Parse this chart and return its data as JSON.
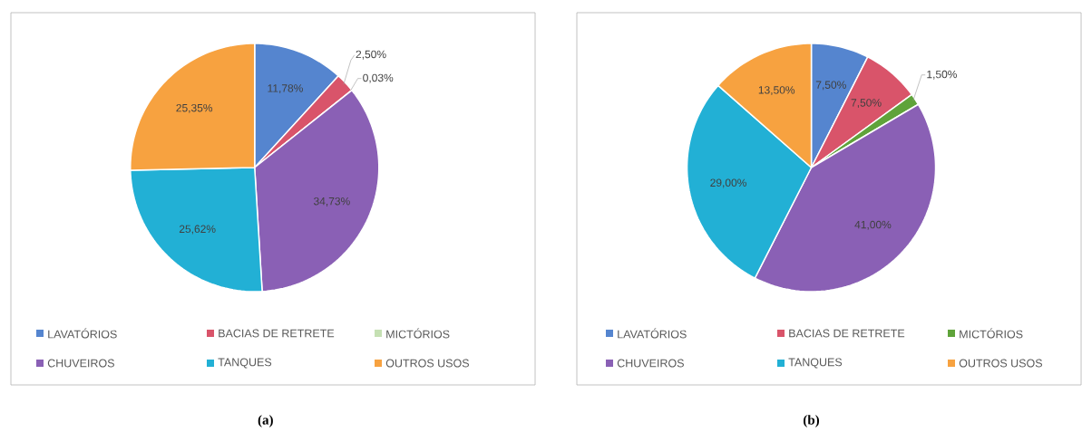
{
  "chart_data": [
    {
      "type": "pie",
      "title": "(a)",
      "categories": [
        "LAVATÓRIOS",
        "BACIAS DE RETRETE",
        "MICTÓRIOS",
        "CHUVEIROS",
        "TANQUES",
        "OUTROS USOS"
      ],
      "values": [
        11.78,
        2.5,
        0.03,
        34.73,
        25.62,
        25.35
      ],
      "value_labels": [
        "11,78%",
        "2,50%",
        "0,03%",
        "34,73%",
        "25,62%",
        "25,35%"
      ],
      "colors": [
        "#5585cf",
        "#d9546a",
        "#c5e0b3",
        "#8a60b5",
        "#22b0d5",
        "#f7a240"
      ],
      "legend": "bottom"
    },
    {
      "type": "pie",
      "title": "(b)",
      "categories": [
        "LAVATÓRIOS",
        "BACIAS DE RETRETE",
        "MICTÓRIOS",
        "CHUVEIROS",
        "TANQUES",
        "OUTROS USOS"
      ],
      "values": [
        7.5,
        7.5,
        1.5,
        41.0,
        29.0,
        13.5
      ],
      "value_labels": [
        "7,50%",
        "7,50%",
        "1,50%",
        "41,00%",
        "29,00%",
        "13,50%"
      ],
      "colors": [
        "#5585cf",
        "#d9546a",
        "#5fa33a",
        "#8a60b5",
        "#22b0d5",
        "#f7a240"
      ],
      "legend": "bottom"
    }
  ]
}
